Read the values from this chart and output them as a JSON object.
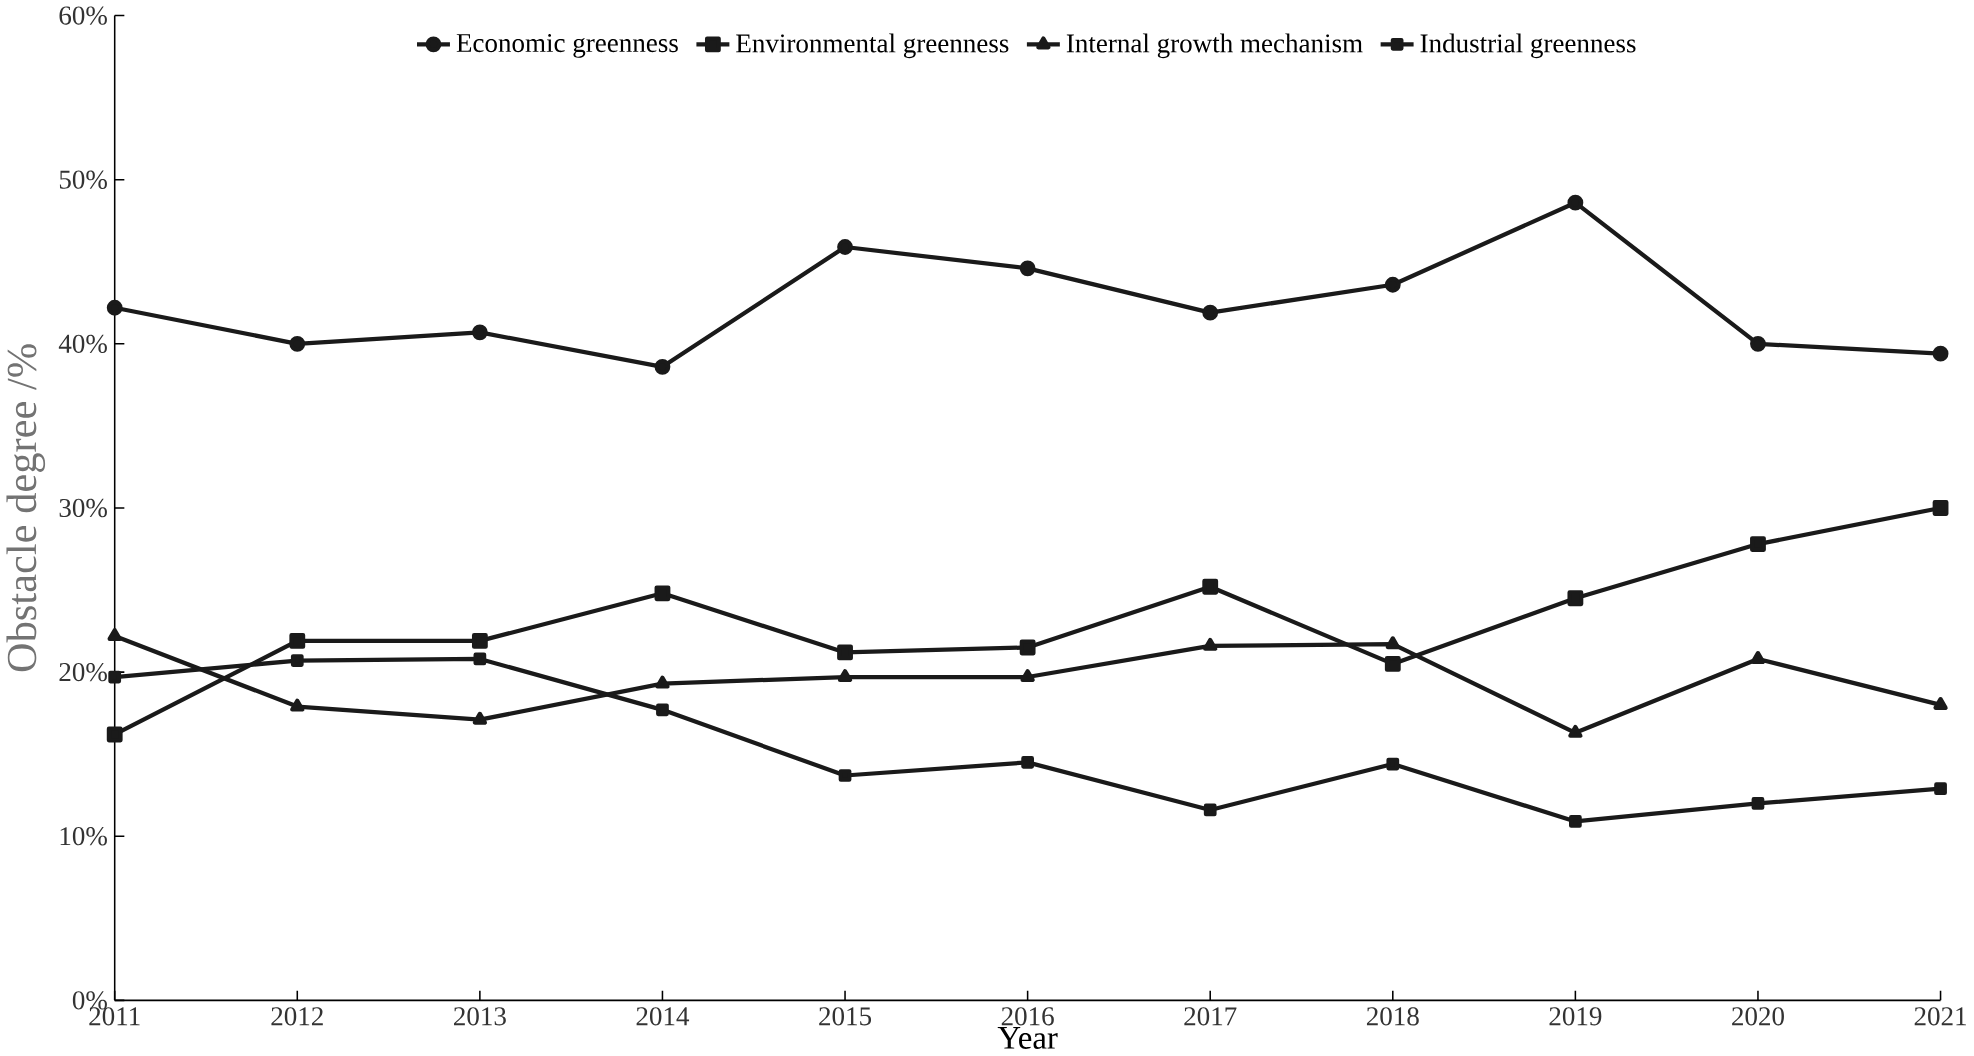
{
  "chart_data": {
    "type": "line",
    "xlabel": "Year",
    "ylabel": "Obstacle degree /%",
    "categories": [
      "2011",
      "2012",
      "2013",
      "2014",
      "2015",
      "2016",
      "2017",
      "2018",
      "2019",
      "2020",
      "2021"
    ],
    "series": [
      {
        "name": "Economic greenness",
        "color": "#1a1a1a",
        "marker": "circle",
        "values": [
          42.2,
          40.0,
          40.7,
          38.6,
          45.9,
          44.6,
          41.9,
          43.6,
          48.6,
          40.0,
          39.4
        ]
      },
      {
        "name": "Environmental greenness",
        "color": "#1a1a1a",
        "marker": "square",
        "values": [
          16.2,
          21.9,
          21.9,
          24.8,
          21.2,
          21.5,
          25.2,
          20.5,
          24.5,
          27.8,
          30.0
        ]
      },
      {
        "name": "Internal growth mechanism",
        "color": "#1a1a1a",
        "marker": "triangle",
        "values": [
          22.2,
          17.9,
          17.1,
          19.3,
          19.7,
          19.7,
          21.6,
          21.7,
          16.3,
          20.8,
          18.0
        ]
      },
      {
        "name": "Industrial greenness",
        "color": "#1a1a1a",
        "marker": "square",
        "values": [
          19.7,
          20.7,
          20.8,
          17.7,
          13.7,
          14.5,
          11.6,
          14.4,
          10.9,
          12.0,
          12.9
        ]
      }
    ],
    "ylim": [
      0,
      60
    ],
    "yticks": [
      {
        "value": 0,
        "label": "0%"
      },
      {
        "value": 10,
        "label": "10%"
      },
      {
        "value": 20,
        "label": "20%"
      },
      {
        "value": 30,
        "label": "30%"
      },
      {
        "value": 40,
        "label": "40%"
      },
      {
        "value": 50,
        "label": "50%"
      },
      {
        "value": 60,
        "label": "60%"
      }
    ],
    "grid": false,
    "legend": "top",
    "line_style": "solid"
  }
}
